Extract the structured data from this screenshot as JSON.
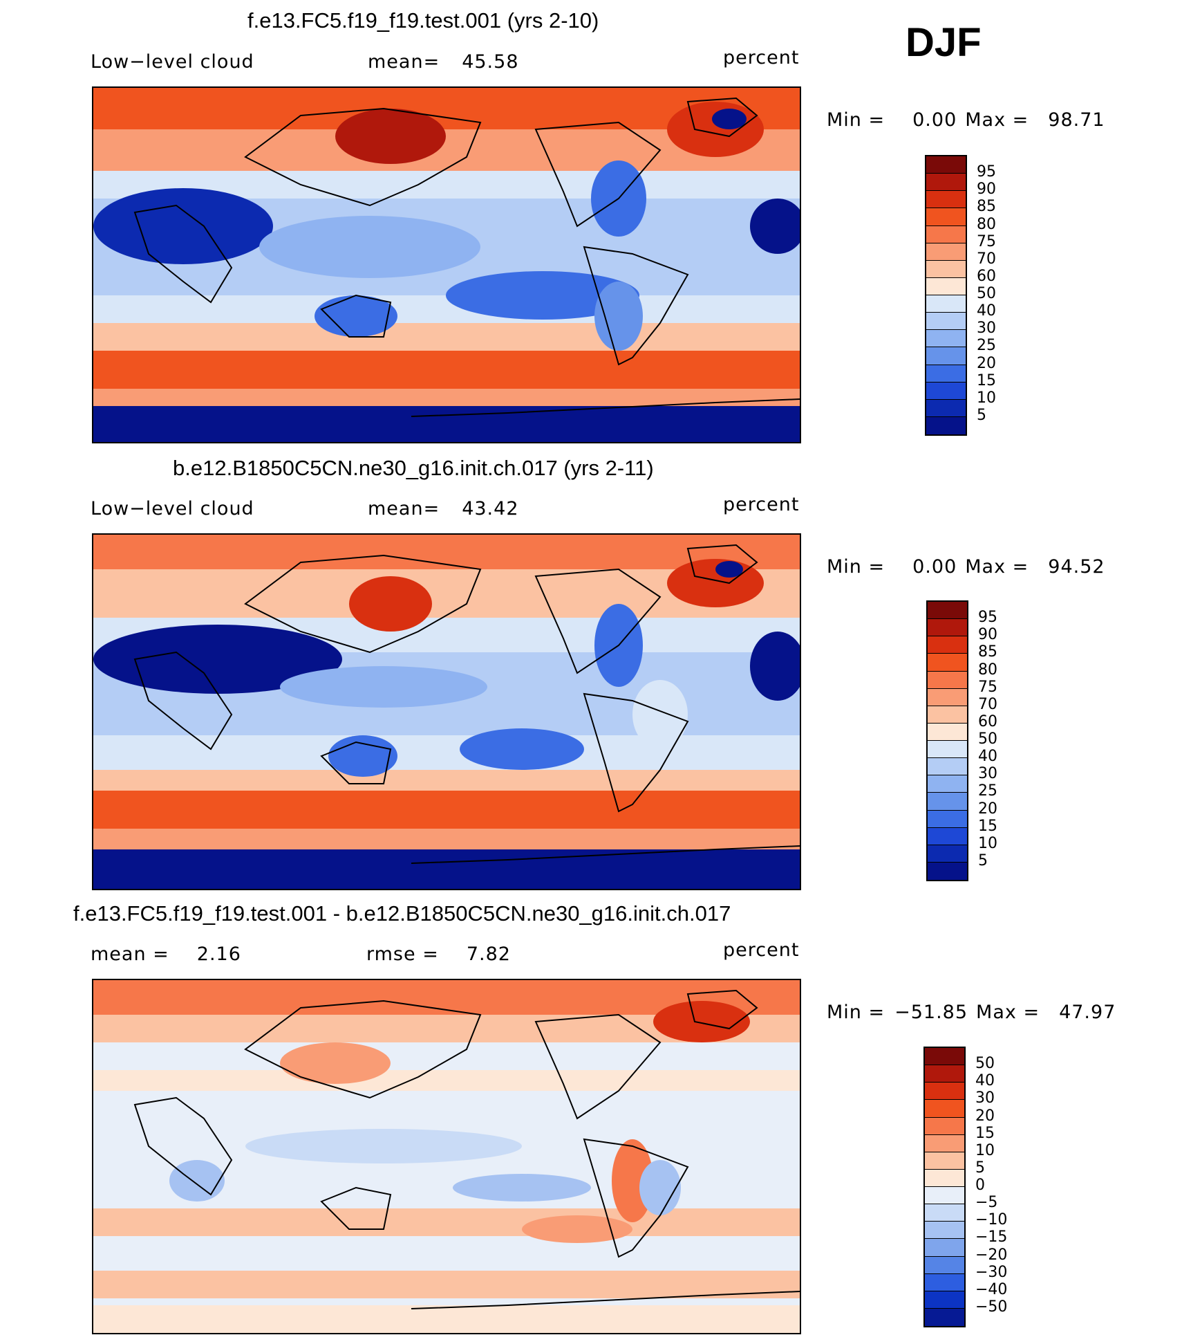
{
  "season": "DJF",
  "colors": {
    "deep_red": "#8b0d0b",
    "red": "#c92a0f",
    "orange_red": "#ee5a2e",
    "salmon": "#f7a07e",
    "peach": "#fcd6bd",
    "pale": "#fbefe4",
    "pale_blue": "#dce8f7",
    "light_blue": "#a9c6f3",
    "mid_blue": "#5b8ee8",
    "blue": "#2a5fe4",
    "dark_blue": "#0b2fb8",
    "navy": "#081a8c"
  },
  "panels": [
    {
      "title": "f.e13.FC5.f19_f19.test.001 (yrs 2-10)",
      "left_label": "Low−level cloud",
      "center_label": "mean=",
      "center_value": "45.58",
      "units": "percent",
      "min_label": "Min =",
      "min_value": "0.00",
      "max_label": "Max =",
      "max_value": "98.71",
      "map_name": "model-map",
      "colorbar": {
        "ticks": [
          "95",
          "90",
          "85",
          "80",
          "75",
          "70",
          "60",
          "50",
          "40",
          "30",
          "25",
          "20",
          "15",
          "10",
          "5"
        ],
        "colors": [
          "#7a0a08",
          "#b0180c",
          "#d93010",
          "#f0541f",
          "#f6774a",
          "#f99c75",
          "#fbc2a2",
          "#fde7d6",
          "#d9e7f8",
          "#b4cdf5",
          "#8fb3f1",
          "#6693ea",
          "#3b6de4",
          "#1e48d6",
          "#0c2ab0",
          "#05128a"
        ]
      }
    },
    {
      "title": "b.e12.B1850C5CN.ne30_g16.init.ch.017 (yrs 2-11)",
      "left_label": "Low−level cloud",
      "center_label": "mean=",
      "center_value": "43.42",
      "units": "percent",
      "min_label": "Min =",
      "min_value": "0.00",
      "max_label": "Max =",
      "max_value": "94.52",
      "map_name": "observation-map",
      "colorbar": {
        "ticks": [
          "95",
          "90",
          "85",
          "80",
          "75",
          "70",
          "60",
          "50",
          "40",
          "30",
          "25",
          "20",
          "15",
          "10",
          "5"
        ],
        "colors": [
          "#7a0a08",
          "#b0180c",
          "#d93010",
          "#f0541f",
          "#f6774a",
          "#f99c75",
          "#fbc2a2",
          "#fde7d6",
          "#d9e7f8",
          "#b4cdf5",
          "#8fb3f1",
          "#6693ea",
          "#3b6de4",
          "#1e48d6",
          "#0c2ab0",
          "#05128a"
        ]
      }
    },
    {
      "title": "f.e13.FC5.f19_f19.test.001 - b.e12.B1850C5CN.ne30_g16.init.ch.017",
      "left_label": "mean =",
      "left_value": "2.16",
      "center_label": "rmse =",
      "center_value": "7.82",
      "units": "percent",
      "min_label": "Min =",
      "min_value": "−51.85",
      "max_label": "Max =",
      "max_value": "47.97",
      "map_name": "difference-map",
      "colorbar": {
        "ticks": [
          "50",
          "40",
          "30",
          "20",
          "15",
          "10",
          "5",
          "0",
          "−5",
          "−10",
          "−15",
          "−20",
          "−30",
          "−40",
          "−50"
        ],
        "colors": [
          "#7a0a08",
          "#b0180c",
          "#d93010",
          "#f0541f",
          "#f6774a",
          "#f99c75",
          "#fbc2a2",
          "#fde7d6",
          "#e8eff9",
          "#c9dbf6",
          "#a6c2f2",
          "#7fa5ec",
          "#5584e6",
          "#2d5ee0",
          "#0c34c4",
          "#061a94"
        ]
      }
    }
  ]
}
